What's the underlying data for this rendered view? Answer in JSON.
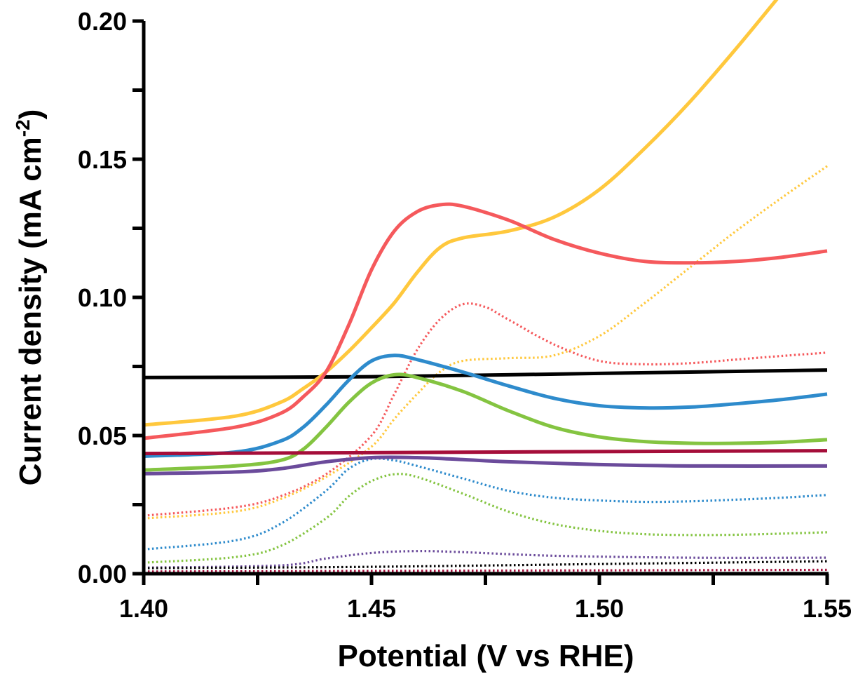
{
  "chart_data": {
    "type": "line",
    "xlabel": "Potential (V vs RHE)",
    "ylabel_main": "Current density (mA cm",
    "ylabel_sup": "-2",
    "ylabel_end": ")",
    "xlim": [
      1.4,
      1.55
    ],
    "ylim": [
      0.0,
      0.2
    ],
    "x_ticks": [
      1.4,
      1.425,
      1.45,
      1.475,
      1.5,
      1.525,
      1.55
    ],
    "x_tick_labels": [
      {
        "value": 1.4,
        "label": "1.40"
      },
      {
        "value": 1.45,
        "label": "1.45"
      },
      {
        "value": 1.5,
        "label": "1.50"
      },
      {
        "value": 1.55,
        "label": "1.55"
      }
    ],
    "y_ticks": [
      0.0,
      0.025,
      0.05,
      0.075,
      0.1,
      0.125,
      0.15,
      0.175,
      0.2
    ],
    "y_tick_labels": [
      {
        "value": 0.0,
        "label": "0.00"
      },
      {
        "value": 0.05,
        "label": "0.05"
      },
      {
        "value": 0.1,
        "label": "0.10"
      },
      {
        "value": 0.15,
        "label": "0.15"
      },
      {
        "value": 0.2,
        "label": "0.20"
      }
    ],
    "grid": false,
    "legend": "none",
    "series": [
      {
        "color": "#000000",
        "style": "solid",
        "points": [
          [
            1.4,
            0.071
          ],
          [
            1.45,
            0.0713
          ],
          [
            1.5,
            0.0725
          ],
          [
            1.55,
            0.0737
          ]
        ]
      },
      {
        "color": "#FFC83D",
        "style": "solid",
        "points": [
          [
            1.4,
            0.0538
          ],
          [
            1.42,
            0.057
          ],
          [
            1.43,
            0.062
          ],
          [
            1.435,
            0.067
          ],
          [
            1.44,
            0.073
          ],
          [
            1.445,
            0.0805
          ],
          [
            1.45,
            0.089
          ],
          [
            1.455,
            0.098
          ],
          [
            1.46,
            0.109
          ],
          [
            1.465,
            0.118
          ],
          [
            1.47,
            0.1215
          ],
          [
            1.48,
            0.124
          ],
          [
            1.49,
            0.129
          ],
          [
            1.5,
            0.139
          ],
          [
            1.51,
            0.154
          ],
          [
            1.52,
            0.171
          ],
          [
            1.53,
            0.19
          ],
          [
            1.54,
            0.21
          ]
        ]
      },
      {
        "color": "#F5595C",
        "style": "solid",
        "points": [
          [
            1.4,
            0.049
          ],
          [
            1.42,
            0.053
          ],
          [
            1.43,
            0.058
          ],
          [
            1.435,
            0.064
          ],
          [
            1.44,
            0.073
          ],
          [
            1.445,
            0.09
          ],
          [
            1.45,
            0.11
          ],
          [
            1.455,
            0.124
          ],
          [
            1.46,
            0.131
          ],
          [
            1.465,
            0.1335
          ],
          [
            1.47,
            0.133
          ],
          [
            1.48,
            0.128
          ],
          [
            1.49,
            0.121
          ],
          [
            1.5,
            0.116
          ],
          [
            1.51,
            0.113
          ],
          [
            1.52,
            0.1125
          ],
          [
            1.53,
            0.113
          ],
          [
            1.54,
            0.1145
          ],
          [
            1.55,
            0.1168
          ]
        ]
      },
      {
        "color": "#2E8BCC",
        "style": "solid",
        "points": [
          [
            1.4,
            0.0425
          ],
          [
            1.42,
            0.044
          ],
          [
            1.43,
            0.048
          ],
          [
            1.435,
            0.053
          ],
          [
            1.44,
            0.061
          ],
          [
            1.445,
            0.07
          ],
          [
            1.45,
            0.077
          ],
          [
            1.455,
            0.079
          ],
          [
            1.46,
            0.0775
          ],
          [
            1.47,
            0.073
          ],
          [
            1.48,
            0.068
          ],
          [
            1.49,
            0.0635
          ],
          [
            1.5,
            0.0608
          ],
          [
            1.51,
            0.06
          ],
          [
            1.52,
            0.0603
          ],
          [
            1.53,
            0.0615
          ],
          [
            1.54,
            0.063
          ],
          [
            1.55,
            0.065
          ]
        ]
      },
      {
        "color": "#84C441",
        "style": "solid",
        "points": [
          [
            1.4,
            0.0375
          ],
          [
            1.42,
            0.039
          ],
          [
            1.43,
            0.041
          ],
          [
            1.435,
            0.045
          ],
          [
            1.44,
            0.053
          ],
          [
            1.445,
            0.062
          ],
          [
            1.45,
            0.069
          ],
          [
            1.455,
            0.072
          ],
          [
            1.46,
            0.071
          ],
          [
            1.47,
            0.066
          ],
          [
            1.48,
            0.059
          ],
          [
            1.49,
            0.053
          ],
          [
            1.5,
            0.0495
          ],
          [
            1.51,
            0.0478
          ],
          [
            1.52,
            0.0472
          ],
          [
            1.53,
            0.0472
          ],
          [
            1.54,
            0.0476
          ],
          [
            1.55,
            0.0485
          ]
        ]
      },
      {
        "color": "#A50E3A",
        "style": "solid",
        "points": [
          [
            1.4,
            0.0435
          ],
          [
            1.45,
            0.0438
          ],
          [
            1.5,
            0.0442
          ],
          [
            1.55,
            0.0445
          ]
        ]
      },
      {
        "color": "#6B4B9B",
        "style": "solid",
        "points": [
          [
            1.4,
            0.0362
          ],
          [
            1.42,
            0.0368
          ],
          [
            1.43,
            0.038
          ],
          [
            1.44,
            0.0405
          ],
          [
            1.45,
            0.042
          ],
          [
            1.46,
            0.042
          ],
          [
            1.47,
            0.0413
          ],
          [
            1.48,
            0.0405
          ],
          [
            1.5,
            0.0395
          ],
          [
            1.52,
            0.039
          ],
          [
            1.55,
            0.039
          ]
        ]
      },
      {
        "color": "#F5595C",
        "style": "dotted",
        "points": [
          [
            1.4,
            0.021
          ],
          [
            1.42,
            0.024
          ],
          [
            1.43,
            0.028
          ],
          [
            1.44,
            0.036
          ],
          [
            1.45,
            0.05
          ],
          [
            1.455,
            0.065
          ],
          [
            1.46,
            0.081
          ],
          [
            1.465,
            0.092
          ],
          [
            1.47,
            0.0975
          ],
          [
            1.475,
            0.0965
          ],
          [
            1.48,
            0.092
          ],
          [
            1.49,
            0.083
          ],
          [
            1.5,
            0.077
          ],
          [
            1.51,
            0.0758
          ],
          [
            1.52,
            0.0762
          ],
          [
            1.53,
            0.0775
          ],
          [
            1.54,
            0.0788
          ],
          [
            1.55,
            0.08
          ]
        ]
      },
      {
        "color": "#FFC83D",
        "style": "dotted",
        "points": [
          [
            1.4,
            0.02
          ],
          [
            1.42,
            0.0225
          ],
          [
            1.43,
            0.027
          ],
          [
            1.44,
            0.035
          ],
          [
            1.45,
            0.046
          ],
          [
            1.455,
            0.056
          ],
          [
            1.46,
            0.065
          ],
          [
            1.465,
            0.073
          ],
          [
            1.47,
            0.077
          ],
          [
            1.48,
            0.078
          ],
          [
            1.49,
            0.079
          ],
          [
            1.5,
            0.086
          ],
          [
            1.51,
            0.098
          ],
          [
            1.52,
            0.111
          ],
          [
            1.53,
            0.124
          ],
          [
            1.54,
            0.136
          ],
          [
            1.55,
            0.1475
          ]
        ]
      },
      {
        "color": "#2E8BCC",
        "style": "dotted",
        "points": [
          [
            1.4,
            0.0088
          ],
          [
            1.42,
            0.012
          ],
          [
            1.43,
            0.018
          ],
          [
            1.44,
            0.03
          ],
          [
            1.445,
            0.038
          ],
          [
            1.45,
            0.0415
          ],
          [
            1.455,
            0.041
          ],
          [
            1.46,
            0.039
          ],
          [
            1.47,
            0.0345
          ],
          [
            1.48,
            0.03
          ],
          [
            1.49,
            0.0275
          ],
          [
            1.5,
            0.0265
          ],
          [
            1.51,
            0.026
          ],
          [
            1.52,
            0.0262
          ],
          [
            1.53,
            0.0268
          ],
          [
            1.54,
            0.0275
          ],
          [
            1.55,
            0.0285
          ]
        ]
      },
      {
        "color": "#84C441",
        "style": "dotted",
        "points": [
          [
            1.4,
            0.004
          ],
          [
            1.42,
            0.006
          ],
          [
            1.43,
            0.01
          ],
          [
            1.44,
            0.02
          ],
          [
            1.445,
            0.028
          ],
          [
            1.45,
            0.0335
          ],
          [
            1.455,
            0.036
          ],
          [
            1.46,
            0.035
          ],
          [
            1.47,
            0.029
          ],
          [
            1.48,
            0.0225
          ],
          [
            1.49,
            0.018
          ],
          [
            1.5,
            0.0155
          ],
          [
            1.51,
            0.0143
          ],
          [
            1.52,
            0.014
          ],
          [
            1.53,
            0.0141
          ],
          [
            1.54,
            0.0145
          ],
          [
            1.55,
            0.015
          ]
        ]
      },
      {
        "color": "#6B4B9B",
        "style": "dotted",
        "points": [
          [
            1.4,
            0.0022
          ],
          [
            1.43,
            0.003
          ],
          [
            1.44,
            0.0055
          ],
          [
            1.45,
            0.0075
          ],
          [
            1.46,
            0.0082
          ],
          [
            1.47,
            0.0078
          ],
          [
            1.49,
            0.0065
          ],
          [
            1.52,
            0.0058
          ],
          [
            1.55,
            0.0058
          ]
        ]
      },
      {
        "color": "#000000",
        "style": "dotted",
        "points": [
          [
            1.4,
            0.002
          ],
          [
            1.45,
            0.0025
          ],
          [
            1.5,
            0.0035
          ],
          [
            1.55,
            0.0045
          ]
        ]
      },
      {
        "color": "#A50E3A",
        "style": "dotted",
        "points": [
          [
            1.4,
            0.0008
          ],
          [
            1.45,
            0.001
          ],
          [
            1.5,
            0.0012
          ],
          [
            1.55,
            0.0014
          ]
        ]
      }
    ]
  }
}
